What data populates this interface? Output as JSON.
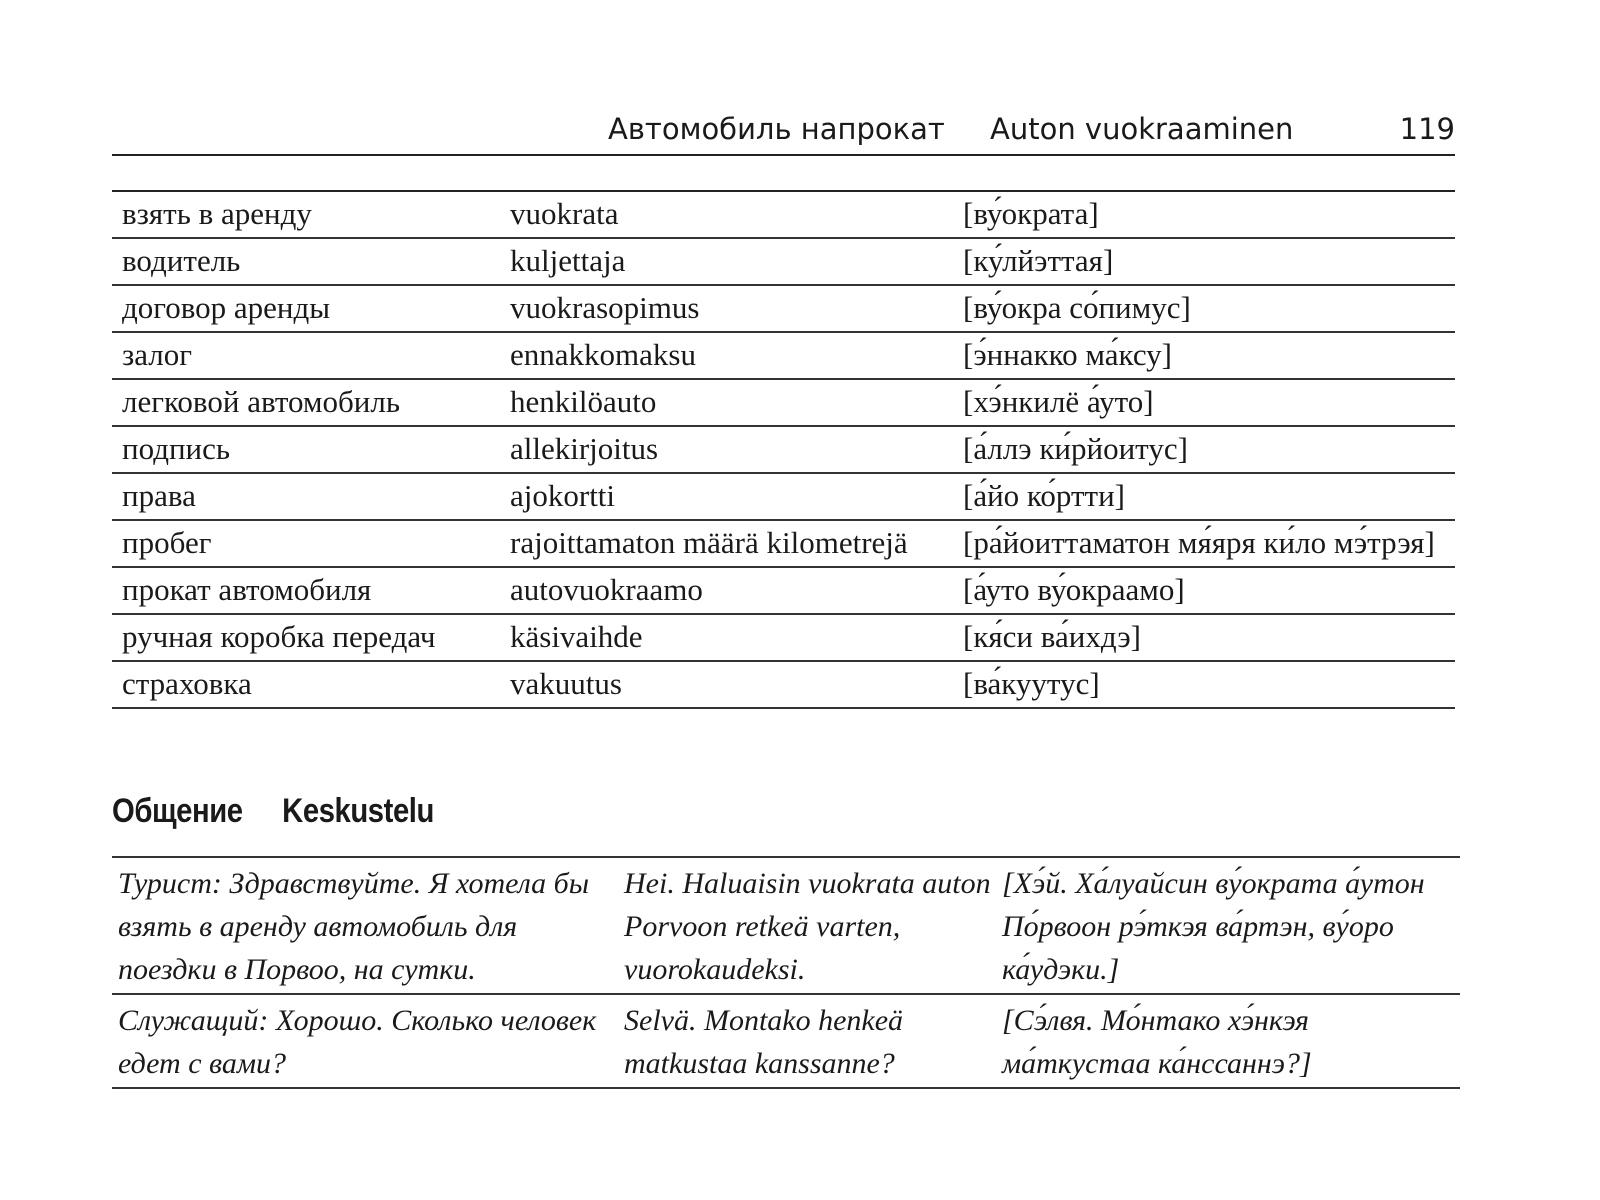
{
  "header": {
    "title_ru": "Автомобиль напрокат",
    "title_fi": "Auton vuokraaminen",
    "page_number": "119"
  },
  "vocabulary": [
    {
      "ru": "взять в аренду",
      "fi": "vuokrata",
      "tr": "[ву́ократа]"
    },
    {
      "ru": "водитель",
      "fi": "kuljettaja",
      "tr": "[ку́лйэттая]"
    },
    {
      "ru": "договор аренды",
      "fi": "vuokrasopimus",
      "tr": "[ву́окра со́пимус]"
    },
    {
      "ru": "залог",
      "fi": "ennakkomaksu",
      "tr": "[э́ннакко ма́ксу]"
    },
    {
      "ru": "легковой автомобиль",
      "fi": "henkilöauto",
      "tr": "[хэ́нкилё а́уто]"
    },
    {
      "ru": "подпись",
      "fi": "allekirjoitus",
      "tr": "[а́ллэ ки́рйоитус]"
    },
    {
      "ru": "права",
      "fi": "ajokortti",
      "tr": "[а́йо ко́ртти]"
    },
    {
      "ru": "пробег",
      "fi": "rajoittamaton määrä kilometrejä",
      "tr": "[ра́йоиттаматон мя́яря ки́ло мэ́трэя]"
    },
    {
      "ru": "прокат автомобиля",
      "fi": "autovuokraamo",
      "tr": "[а́уто ву́окраамо]"
    },
    {
      "ru": "ручная коробка передач",
      "fi": "käsivaihde",
      "tr": "[кя́си ва́ихдэ]"
    },
    {
      "ru": "страховка",
      "fi": "vakuutus",
      "tr": "[ва́куутус]"
    }
  ],
  "section": {
    "title_ru": "Общение",
    "title_fi": "Keskustelu"
  },
  "dialog": [
    {
      "ru": "Турист: Здравствуйте. Я хотела бы взять в аренду автомобиль для поездки в Порвоо, на сутки.",
      "fi": "Hei. Haluaisin vuokrata auton Porvoon retkeä varten, vuorokaudeksi.",
      "tr": "[Хэ́й. Ха́луайсин ву́ократа а́утон По́рвоон рэ́ткэя ва́ртэн, ву́оро ка́удэки.]"
    },
    {
      "ru": "Служащий: Хорошо. Сколько человек едет с вами?",
      "fi": "Selvä. Montako henkeä matkustaa kanssanne?",
      "tr": "[Сэ́лвя. Мо́нтако хэ́нкэя ма́ткустаа ка́нссаннэ?]"
    }
  ]
}
